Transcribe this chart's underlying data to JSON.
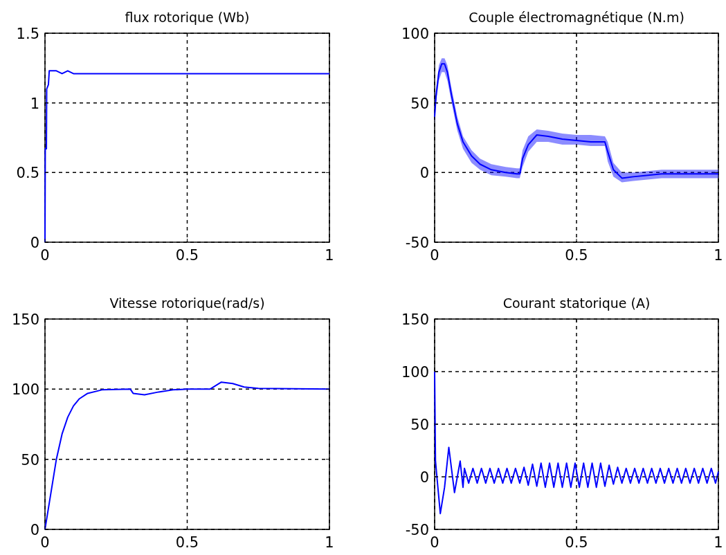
{
  "chart_data": [
    {
      "type": "line",
      "title": "flux rotorique (Wb)",
      "xlim": [
        0,
        1
      ],
      "xticks": [
        0,
        0.5,
        1
      ],
      "ylim": [
        0,
        1.5
      ],
      "yticks": [
        0,
        0.5,
        1,
        1.5
      ],
      "grid": true,
      "x": [
        0,
        0.001,
        0.005,
        0.006,
        0.012,
        0.015,
        0.04,
        0.06,
        0.08,
        0.1,
        0.15,
        0.2,
        1
      ],
      "series": [
        {
          "color": "#0000ff",
          "values": [
            0,
            0.67,
            0.67,
            1.1,
            1.13,
            1.23,
            1.23,
            1.21,
            1.23,
            1.21,
            1.21,
            1.21,
            1.21
          ]
        }
      ]
    },
    {
      "type": "line",
      "title": "Couple électromagnétique (N.m)",
      "xlim": [
        0,
        1
      ],
      "xticks": [
        0,
        0.5,
        1
      ],
      "ylim": [
        -50,
        100
      ],
      "yticks": [
        -50,
        0,
        50,
        100
      ],
      "grid": true,
      "x": [
        0,
        0.005,
        0.015,
        0.025,
        0.035,
        0.045,
        0.06,
        0.08,
        0.1,
        0.13,
        0.16,
        0.2,
        0.25,
        0.29,
        0.3,
        0.31,
        0.33,
        0.36,
        0.4,
        0.45,
        0.5,
        0.55,
        0.6,
        0.61,
        0.63,
        0.66,
        0.7,
        0.8,
        0.9,
        1
      ],
      "series": [
        {
          "color": "#0000ff",
          "values": [
            40,
            55,
            72,
            78,
            78,
            72,
            55,
            35,
            22,
            12,
            6,
            2,
            0,
            -1,
            -1,
            10,
            20,
            27,
            26,
            24,
            23,
            22,
            22,
            15,
            2,
            -4,
            -3,
            -1,
            -1,
            -1
          ],
          "lower": [
            35,
            50,
            66,
            72,
            72,
            66,
            50,
            30,
            17,
            7,
            2,
            -2,
            -3,
            -4,
            -4,
            4,
            15,
            22,
            22,
            20,
            20,
            19,
            19,
            8,
            -3,
            -7,
            -6,
            -4,
            -4,
            -4
          ],
          "upper": [
            45,
            60,
            77,
            82,
            82,
            77,
            60,
            40,
            26,
            16,
            10,
            6,
            4,
            3,
            3,
            16,
            26,
            31,
            30,
            28,
            27,
            27,
            26,
            22,
            7,
            0,
            0,
            2,
            2,
            2
          ]
        }
      ]
    },
    {
      "type": "line",
      "title": "Vitesse rotorique(rad/s)",
      "xlim": [
        0,
        1
      ],
      "xticks": [
        0,
        0.5,
        1
      ],
      "ylim": [
        0,
        150
      ],
      "yticks": [
        0,
        50,
        100,
        150
      ],
      "grid": true,
      "x": [
        0,
        0.02,
        0.04,
        0.06,
        0.08,
        0.1,
        0.12,
        0.15,
        0.2,
        0.3,
        0.31,
        0.35,
        0.4,
        0.45,
        0.5,
        0.58,
        0.62,
        0.66,
        0.7,
        0.75,
        1
      ],
      "series": [
        {
          "color": "#0000ff",
          "values": [
            0,
            25,
            50,
            68,
            80,
            88,
            93,
            97,
            99.5,
            100,
            97,
            96,
            98,
            99.5,
            100,
            100,
            105,
            104,
            101.5,
            100.5,
            100
          ]
        }
      ]
    },
    {
      "type": "line",
      "title": "Courant  statorique (A)",
      "xlim": [
        0,
        1
      ],
      "xticks": [
        0,
        0.5,
        1
      ],
      "ylim": [
        -50,
        150
      ],
      "yticks": [
        -50,
        0,
        50,
        100,
        150
      ],
      "grid": true,
      "x": [
        0,
        0.003,
        0.008,
        0.02,
        0.035,
        0.05,
        0.07,
        0.09,
        0.1,
        0.105,
        0.12,
        0.135,
        0.15,
        0.165,
        0.18,
        0.195,
        0.21,
        0.225,
        0.24,
        0.255,
        0.27,
        0.285,
        0.3,
        0.315,
        0.33,
        0.345,
        0.36,
        0.375,
        0.39,
        0.405,
        0.42,
        0.435,
        0.45,
        0.465,
        0.48,
        0.495,
        0.51,
        0.525,
        0.54,
        0.555,
        0.57,
        0.585,
        0.6,
        0.615,
        0.63,
        0.645,
        0.66,
        0.675,
        0.69,
        0.705,
        0.72,
        0.735,
        0.75,
        0.765,
        0.78,
        0.795,
        0.81,
        0.825,
        0.84,
        0.855,
        0.87,
        0.885,
        0.9,
        0.915,
        0.93,
        0.945,
        0.96,
        0.975,
        0.99,
        1
      ],
      "series": [
        {
          "color": "#0000ff",
          "values": [
            100,
            15,
            0,
            -35,
            -10,
            28,
            -15,
            15,
            -10,
            8,
            -6,
            8,
            -6,
            8,
            -6,
            8,
            -6,
            8,
            -6,
            8,
            -6,
            8,
            -6,
            9,
            -8,
            12,
            -9,
            13,
            -10,
            13,
            -10,
            13,
            -10,
            13,
            -10,
            13,
            -10,
            13,
            -10,
            13,
            -10,
            13,
            -9,
            11,
            -7,
            9,
            -6,
            8,
            -6,
            8,
            -6,
            8,
            -6,
            8,
            -6,
            8,
            -6,
            8,
            -6,
            8,
            -6,
            8,
            -6,
            8,
            -6,
            8,
            -6,
            8,
            -6,
            5
          ]
        }
      ]
    }
  ]
}
